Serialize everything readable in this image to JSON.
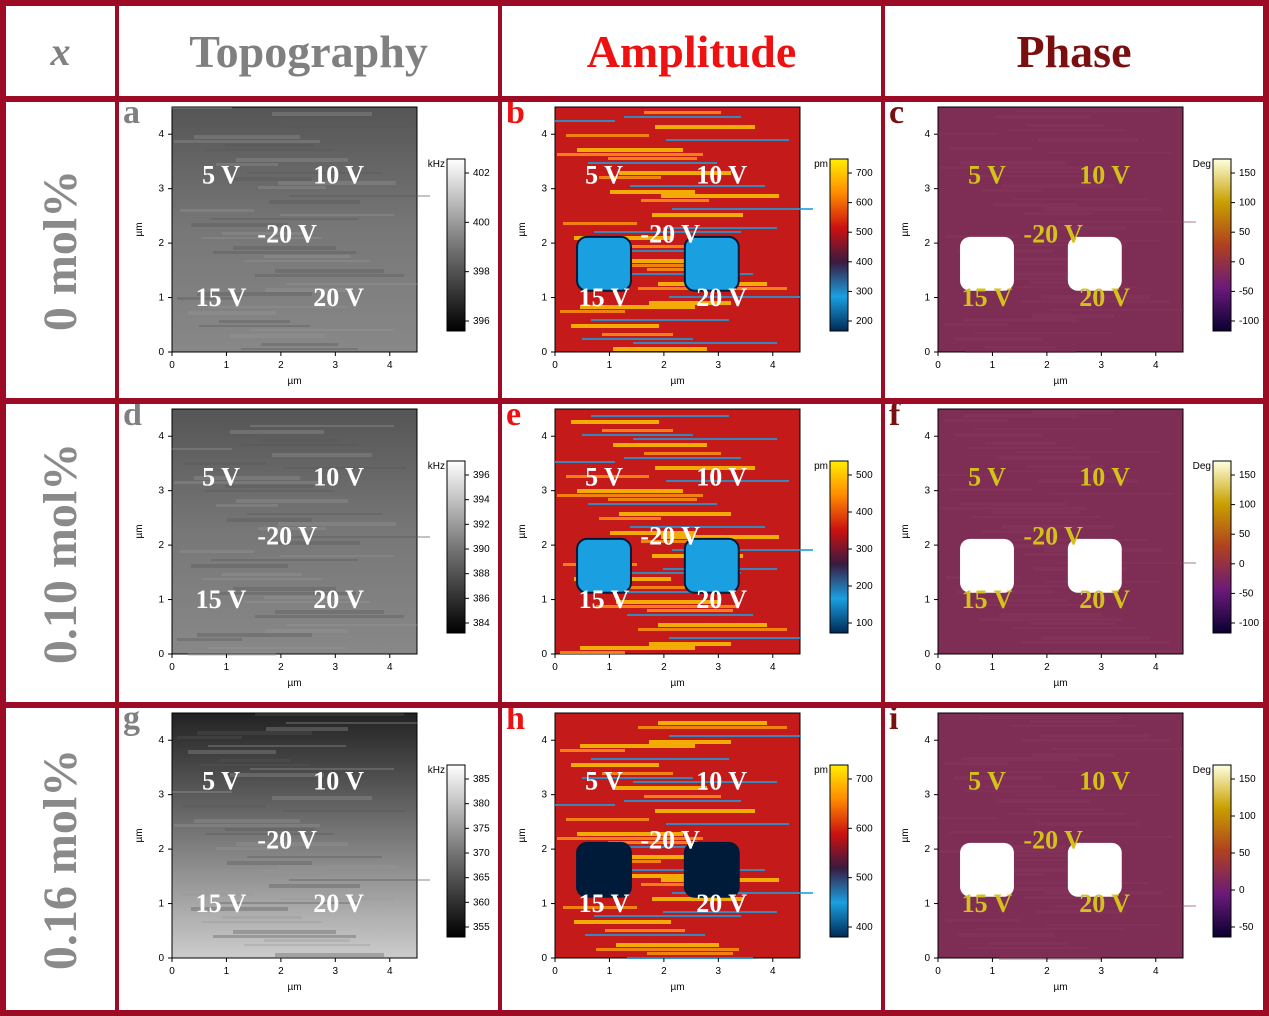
{
  "header": {
    "x_label": "x",
    "columns": [
      {
        "label": "Topography",
        "color": "#808080"
      },
      {
        "label": "Amplitude",
        "color": "#ee1111"
      },
      {
        "label": "Phase",
        "color": "#7a0f0f"
      }
    ]
  },
  "rows": [
    {
      "label": "0 mol%"
    },
    {
      "label": "0.10 mol%"
    },
    {
      "label": "0.16 mol%"
    }
  ],
  "axes": {
    "unit_label": "µm",
    "x_ticks": [
      "0",
      "1",
      "2",
      "3",
      "4"
    ],
    "y_ticks": [
      "0",
      "1",
      "2",
      "3",
      "4"
    ],
    "range": [
      0,
      4.5
    ]
  },
  "voltages": [
    "5 V",
    "10 V",
    "-20 V",
    "15 V",
    "20 V"
  ],
  "panels": [
    {
      "letter": "a",
      "kind": "topo",
      "unit": "kHz",
      "ticks": [
        "402",
        "400",
        "398",
        "396"
      ],
      "letter_color": "#808080",
      "text_color": "#ffffff"
    },
    {
      "letter": "b",
      "kind": "amp",
      "unit": "pm",
      "ticks": [
        "700",
        "600",
        "500",
        "400",
        "300",
        "200"
      ],
      "letter_color": "#ee1111",
      "text_color": "#ffffff"
    },
    {
      "letter": "c",
      "kind": "phase",
      "unit": "Deg",
      "ticks": [
        "150",
        "100",
        "50",
        "0",
        "-50",
        "-100"
      ],
      "letter_color": "#7a0f0f",
      "text_color": "#d4c21a"
    },
    {
      "letter": "d",
      "kind": "topo",
      "unit": "kHz",
      "ticks": [
        "396",
        "394",
        "392",
        "390",
        "388",
        "386",
        "384"
      ],
      "letter_color": "#808080",
      "text_color": "#ffffff"
    },
    {
      "letter": "e",
      "kind": "amp",
      "unit": "pm",
      "ticks": [
        "500",
        "400",
        "300",
        "200",
        "100"
      ],
      "letter_color": "#ee1111",
      "text_color": "#ffffff"
    },
    {
      "letter": "f",
      "kind": "phase",
      "unit": "Deg",
      "ticks": [
        "150",
        "100",
        "50",
        "0",
        "-50",
        "-100"
      ],
      "letter_color": "#7a0f0f",
      "text_color": "#d4c21a"
    },
    {
      "letter": "g",
      "kind": "topo",
      "unit": "kHz",
      "ticks": [
        "385",
        "380",
        "375",
        "370",
        "365",
        "360",
        "355"
      ],
      "letter_color": "#808080",
      "text_color": "#ffffff"
    },
    {
      "letter": "h",
      "kind": "amp",
      "unit": "pm",
      "ticks": [
        "700",
        "600",
        "500",
        "400"
      ],
      "letter_color": "#ee1111",
      "text_color": "#ffffff"
    },
    {
      "letter": "i",
      "kind": "phase",
      "unit": "Deg",
      "ticks": [
        "150",
        "100",
        "50",
        "0",
        "-50"
      ],
      "letter_color": "#7a0f0f",
      "text_color": "#d4c21a"
    }
  ]
}
